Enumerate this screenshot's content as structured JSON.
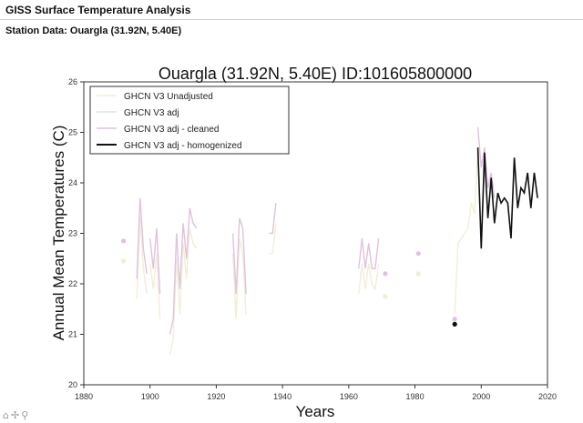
{
  "header": {
    "title": "GISS Surface Temperature Analysis"
  },
  "subtitle": "Station Data: Ouargla (31.92N, 5.40E)",
  "chart_data": {
    "type": "line",
    "title": "Ouargla (31.92N, 5.40E) ID:101605800000",
    "xlabel": "Years",
    "ylabel": "Annual Mean Temperatures (C)",
    "xlim": [
      1880,
      2020
    ],
    "ylim": [
      20,
      26
    ],
    "xticks": [
      "1880",
      "1900",
      "1920",
      "1940",
      "1960",
      "1980",
      "2000",
      "2020"
    ],
    "yticks": [
      "20",
      "21",
      "22",
      "23",
      "24",
      "25",
      "26"
    ],
    "grid": false,
    "legend_position": "top-left",
    "series": [
      {
        "name": "GHCN V3 Unadjusted",
        "color": "#f2eed6",
        "segments": [
          [
            [
              1896,
              21.7
            ],
            [
              1897,
              23.3
            ],
            [
              1898,
              22.3
            ],
            [
              1899,
              21.8
            ]
          ],
          [
            [
              1900,
              22.4
            ],
            [
              1901,
              21.9
            ],
            [
              1902,
              22.6
            ],
            [
              1903,
              21.3
            ]
          ],
          [
            [
              1906,
              20.6
            ],
            [
              1907,
              20.9
            ],
            [
              1908,
              22.5
            ],
            [
              1909,
              21.4
            ],
            [
              1910,
              22.8
            ],
            [
              1911,
              22.1
            ],
            [
              1912,
              23.1
            ],
            [
              1913,
              22.8
            ],
            [
              1914,
              22.7
            ]
          ],
          [
            [
              1925,
              22.6
            ],
            [
              1926,
              21.3
            ],
            [
              1927,
              22.9
            ],
            [
              1928,
              22.6
            ],
            [
              1929,
              21.4
            ]
          ],
          [
            [
              1936,
              22.6
            ],
            [
              1937,
              22.6
            ],
            [
              1938,
              23.2
            ]
          ],
          [
            [
              1963,
              21.8
            ],
            [
              1964,
              22.4
            ],
            [
              1965,
              21.9
            ],
            [
              1966,
              22.4
            ],
            [
              1967,
              22.0
            ],
            [
              1968,
              21.9
            ],
            [
              1969,
              22.4
            ]
          ],
          [
            [
              1992,
              21.4
            ],
            [
              1993,
              22.8
            ],
            [
              1994,
              22.9
            ],
            [
              1995,
              23.0
            ],
            [
              1996,
              23.1
            ],
            [
              1997,
              23.6
            ],
            [
              1998,
              23.4
            ],
            [
              1999,
              24.7
            ]
          ]
        ],
        "points": [
          [
            1892,
            22.45
          ],
          [
            1971,
            21.75
          ],
          [
            1981,
            22.2
          ]
        ]
      },
      {
        "name": "GHCN V3 adj",
        "color": "#e2e2e2",
        "segments": [],
        "points": []
      },
      {
        "name": "GHCN V3 adj - cleaned",
        "color": "#e0c2e0",
        "segments": [
          [
            [
              1896,
              22.1
            ],
            [
              1897,
              23.7
            ],
            [
              1898,
              22.7
            ],
            [
              1899,
              22.2
            ]
          ],
          [
            [
              1900,
              22.9
            ],
            [
              1901,
              22.3
            ],
            [
              1902,
              23.1
            ],
            [
              1903,
              21.8
            ]
          ],
          [
            [
              1906,
              21.0
            ],
            [
              1907,
              21.3
            ],
            [
              1908,
              23.0
            ],
            [
              1909,
              21.9
            ],
            [
              1910,
              23.2
            ],
            [
              1911,
              22.5
            ],
            [
              1912,
              23.5
            ],
            [
              1913,
              23.2
            ],
            [
              1914,
              23.1
            ]
          ],
          [
            [
              1925,
              23.0
            ],
            [
              1926,
              21.8
            ],
            [
              1927,
              23.3
            ],
            [
              1928,
              23.1
            ],
            [
              1929,
              21.8
            ]
          ],
          [
            [
              1936,
              23.0
            ],
            [
              1937,
              23.0
            ],
            [
              1938,
              23.6
            ]
          ],
          [
            [
              1963,
              22.3
            ],
            [
              1964,
              22.9
            ],
            [
              1965,
              22.3
            ],
            [
              1966,
              22.8
            ],
            [
              1967,
              22.3
            ],
            [
              1968,
              22.3
            ],
            [
              1969,
              22.9
            ]
          ],
          [
            [
              1999,
              25.1
            ],
            [
              2000,
              24.3
            ],
            [
              2001,
              24.7
            ],
            [
              2002,
              23.9
            ],
            [
              2003,
              24.2
            ],
            [
              2004,
              23.7
            ]
          ]
        ],
        "points": [
          [
            1892,
            22.85
          ],
          [
            1971,
            22.2
          ],
          [
            1981,
            22.6
          ],
          [
            1992,
            21.3
          ]
        ]
      },
      {
        "name": "GHCN V3 adj - homogenized",
        "color": "#111111",
        "segments": [
          [
            [
              1999,
              24.7
            ],
            [
              2000,
              22.7
            ],
            [
              2001,
              24.6
            ],
            [
              2002,
              23.3
            ],
            [
              2003,
              24.1
            ],
            [
              2004,
              23.2
            ],
            [
              2005,
              23.8
            ],
            [
              2006,
              23.6
            ],
            [
              2007,
              23.7
            ],
            [
              2008,
              23.6
            ],
            [
              2009,
              22.9
            ],
            [
              2010,
              24.5
            ],
            [
              2011,
              23.5
            ],
            [
              2012,
              23.9
            ],
            [
              2013,
              23.8
            ],
            [
              2014,
              24.2
            ],
            [
              2015,
              23.5
            ],
            [
              2016,
              24.2
            ],
            [
              2017,
              23.7
            ]
          ]
        ],
        "points": [
          [
            1992,
            21.2
          ]
        ]
      }
    ]
  }
}
